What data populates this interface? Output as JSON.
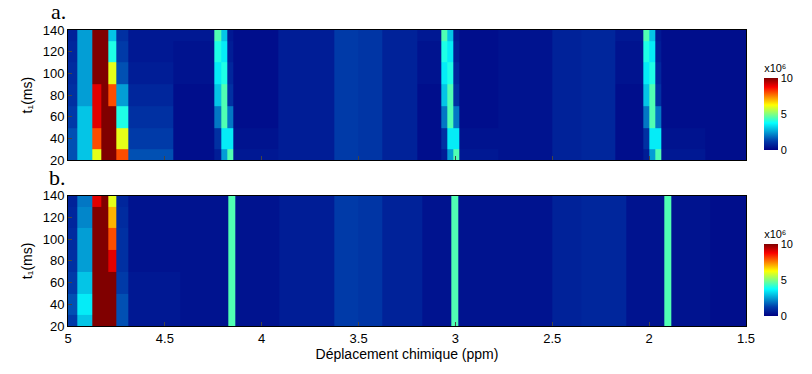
{
  "chart_data": [
    {
      "type": "heatmap",
      "title": "a.",
      "color": "Jet",
      "tick_labels": "y",
      "ylabel": "t₁(ms)",
      "xlim": [
        5,
        1.5
      ],
      "xticks": [
        5,
        4.5,
        4,
        3.5,
        3,
        2.5,
        2,
        1.5
      ],
      "ylim": [
        20,
        140
      ],
      "yticks": [
        20,
        40,
        60,
        80,
        100,
        120,
        140
      ],
      "x": [
        5.0,
        4.9,
        4.85,
        4.81,
        4.77,
        4.73,
        4.65,
        4.26,
        4.225,
        4.195,
        4.165,
        4.13,
        3.7,
        3.55,
        3.45,
        3.3,
        3.09,
        3.055,
        3.025,
        2.995,
        2.96,
        2.6,
        2.4,
        2.3,
        2.05,
        2.015,
        1.985,
        1.955,
        1.92,
        1.5
      ],
      "y": [
        20,
        40,
        60,
        80,
        100,
        120,
        140
      ],
      "z": [
        [
          1.5,
          3,
          6,
          12,
          12,
          8,
          1.5,
          0.3,
          0.6,
          2.5,
          4.5,
          0.5,
          0.6,
          1.2,
          1.1,
          0.7,
          0.3,
          0.6,
          2.5,
          4.5,
          0.5,
          0.4,
          0.7,
          0.8,
          0.3,
          0.6,
          2.5,
          4.5,
          0.5,
          0.3
        ],
        [
          1.5,
          3,
          8,
          12,
          12,
          6,
          1.2,
          0.3,
          1,
          3.5,
          3.5,
          0.4,
          0.6,
          1.2,
          1.1,
          0.7,
          0.3,
          1,
          3.5,
          3.5,
          0.4,
          0.4,
          0.7,
          0.8,
          0.3,
          1,
          3.5,
          3.5,
          0.4,
          0.3
        ],
        [
          1.2,
          3,
          9,
          12,
          11,
          4,
          1,
          0.3,
          2,
          4.5,
          2,
          0.3,
          0.6,
          1.2,
          1.1,
          0.7,
          0.3,
          2,
          4.5,
          2,
          0.3,
          0.4,
          0.7,
          0.8,
          0.3,
          2,
          4.5,
          2,
          0.3,
          0.3
        ],
        [
          1,
          2.5,
          9,
          12,
          8,
          2.5,
          0.8,
          0.3,
          3,
          4.5,
          1,
          0.3,
          0.6,
          1.2,
          1.1,
          0.7,
          0.3,
          3,
          4.5,
          1,
          0.3,
          0.4,
          0.7,
          0.8,
          0.3,
          3,
          4.5,
          1,
          0.3,
          0.3
        ],
        [
          0.9,
          2.5,
          10,
          12,
          6,
          1.5,
          0.6,
          0.4,
          3.5,
          4,
          0.8,
          0.3,
          0.6,
          1.2,
          1.1,
          0.7,
          0.4,
          3.5,
          4,
          0.8,
          0.3,
          0.4,
          0.7,
          0.8,
          0.4,
          3.5,
          4,
          0.8,
          0.3,
          0.3
        ],
        [
          0.8,
          2.5,
          11,
          12,
          4,
          1.2,
          0.5,
          0.4,
          4,
          3.5,
          0.6,
          0.3,
          0.6,
          1.2,
          1.1,
          0.7,
          0.4,
          4,
          3.5,
          0.6,
          0.3,
          0.4,
          0.7,
          0.8,
          0.4,
          4,
          3.5,
          0.6,
          0.3,
          0.3
        ],
        [
          0.7,
          2.5,
          11,
          10,
          3,
          1,
          0.5,
          0.5,
          4.5,
          3,
          0.5,
          0.3,
          0.6,
          1.2,
          1.1,
          0.7,
          0.5,
          4.5,
          3,
          0.5,
          0.3,
          0.4,
          0.7,
          0.8,
          0.5,
          4.5,
          3,
          0.5,
          0.3,
          0.3
        ]
      ],
      "colorbar": {
        "range": [
          0,
          10
        ],
        "ticks": [
          0,
          5,
          10
        ],
        "title": "x10⁶"
      }
    },
    {
      "type": "heatmap",
      "title": "b.",
      "color": "Jet",
      "xlabel": "Déplacement chimique (ppm)",
      "ylabel": "t₁(ms)",
      "xlim": [
        5,
        1.5
      ],
      "xticks": [
        5,
        4.5,
        4,
        3.5,
        3,
        2.5,
        2,
        1.5
      ],
      "ylim": [
        20,
        140
      ],
      "yticks": [
        20,
        40,
        60,
        80,
        100,
        120,
        140
      ],
      "x": [
        5.0,
        4.9,
        4.85,
        4.81,
        4.77,
        4.73,
        4.65,
        4.19,
        4.155,
        4.12,
        3.7,
        3.55,
        3.45,
        3.3,
        3.04,
        3.005,
        2.97,
        2.6,
        2.4,
        2.3,
        1.94,
        1.905,
        1.87,
        1.5
      ],
      "y": [
        20,
        40,
        60,
        80,
        100,
        120,
        140
      ],
      "z": [
        [
          1.2,
          3,
          10,
          12,
          10,
          1.5,
          0.5,
          0.4,
          4.5,
          0.4,
          0.6,
          1.2,
          1.1,
          0.7,
          0.4,
          4.5,
          0.4,
          0.4,
          0.7,
          0.8,
          0.4,
          4.5,
          0.4,
          0.3
        ],
        [
          1.5,
          3.5,
          11,
          12,
          10,
          1.5,
          0.5,
          0.4,
          4.5,
          0.4,
          0.6,
          1.2,
          1.1,
          0.7,
          0.4,
          4.5,
          0.4,
          0.4,
          0.7,
          0.8,
          0.4,
          4.5,
          0.4,
          0.3
        ],
        [
          1.2,
          3,
          11,
          12,
          10,
          1.2,
          0.5,
          0.4,
          4.5,
          0.4,
          0.6,
          1.2,
          1.1,
          0.7,
          0.4,
          4.5,
          0.4,
          0.4,
          0.7,
          0.8,
          0.4,
          4.5,
          0.4,
          0.3
        ],
        [
          1,
          2.5,
          10,
          12,
          9,
          1,
          0.4,
          0.4,
          4.5,
          0.4,
          0.6,
          1.2,
          1.1,
          0.7,
          0.4,
          4.5,
          0.4,
          0.4,
          0.7,
          0.8,
          0.4,
          4.5,
          0.4,
          0.3
        ],
        [
          0.9,
          2.5,
          10,
          12,
          8,
          1,
          0.4,
          0.4,
          4.5,
          0.4,
          0.6,
          1.2,
          1.1,
          0.7,
          0.4,
          4.5,
          0.4,
          0.4,
          0.7,
          0.8,
          0.4,
          4.5,
          0.4,
          0.3
        ],
        [
          0.8,
          2.2,
          10,
          12,
          7,
          0.9,
          0.4,
          0.4,
          4.5,
          0.4,
          0.6,
          1.2,
          1.1,
          0.7,
          0.4,
          4.5,
          0.4,
          0.4,
          0.7,
          0.8,
          0.4,
          4.5,
          0.4,
          0.3
        ],
        [
          0.7,
          2,
          9,
          12,
          6,
          0.8,
          0.4,
          0.4,
          4.5,
          0.4,
          0.6,
          1.2,
          1.1,
          0.7,
          0.4,
          4.5,
          0.4,
          0.4,
          0.7,
          0.8,
          0.4,
          4.5,
          0.4,
          0.3
        ]
      ],
      "colorbar": {
        "range": [
          0,
          10
        ],
        "ticks": [
          0,
          5,
          10
        ],
        "title": "x10⁶"
      }
    }
  ]
}
